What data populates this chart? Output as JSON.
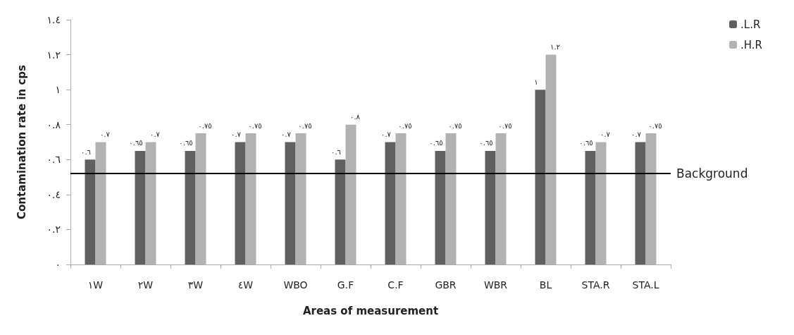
{
  "chart_data": {
    "type": "bar",
    "xlabel": "Areas of measurement",
    "ylabel": "Contamination rate in cps",
    "categories": [
      "١W",
      "٢W",
      "٣W",
      "٤W",
      "WBO",
      "G.F",
      "C.F",
      "GBR",
      "WBR",
      "BL",
      "STA.R",
      "STA.L"
    ],
    "series": [
      {
        "name": ".L.R",
        "color": "#606060",
        "values": [
          0.6,
          0.65,
          0.65,
          0.7,
          0.7,
          0.6,
          0.7,
          0.65,
          0.65,
          1,
          0.65,
          0.7
        ],
        "value_labels": [
          "٠.٦",
          "٠.٦٥",
          "٠.٦٥",
          "٠.٧",
          "٠.٧",
          "٠.٦",
          "٠.٧",
          "٠.٦٥",
          "٠.٦٥",
          "١",
          "٠.٦٥",
          "٠.٧"
        ]
      },
      {
        "name": ".H.R",
        "color": "#b2b2b2",
        "values": [
          0.7,
          0.7,
          0.75,
          0.75,
          0.75,
          0.8,
          0.75,
          0.75,
          0.75,
          1.2,
          0.7,
          0.75
        ],
        "value_labels": [
          "٠.٧",
          "٠.٧",
          "٠.٧٥",
          "٠.٧٥",
          "٠.٧٥",
          "٠.٨",
          "٠.٧٥",
          "٠.٧٥",
          "٠.٧٥",
          "١.٢",
          "٠.٧",
          "٠.٧٥"
        ]
      }
    ],
    "ylim": [
      0,
      1.4
    ],
    "yticks": [
      {
        "value": 0,
        "label": "٠"
      },
      {
        "value": 0.2,
        "label": "٠.٢"
      },
      {
        "value": 0.4,
        "label": "٠.٤"
      },
      {
        "value": 0.6,
        "label": "٠.٦"
      },
      {
        "value": 0.8,
        "label": "٠.٨"
      },
      {
        "value": 1,
        "label": "١"
      },
      {
        "value": 1.2,
        "label": "١.٢"
      },
      {
        "value": 1.4,
        "label": "١.٤"
      }
    ],
    "ref_lines": [
      {
        "axis": "y",
        "value": 0.52,
        "label": "Background",
        "color": "#000000"
      }
    ],
    "grid": false,
    "legend": "top right"
  }
}
